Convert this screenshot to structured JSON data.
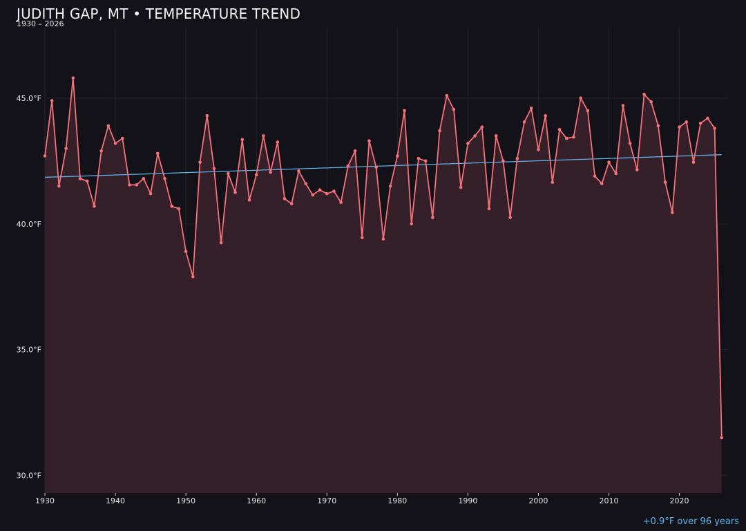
{
  "chart_data": {
    "type": "line",
    "title": "JUDITH GAP, MT • TEMPERATURE TREND",
    "subtitle": "1930 – 2026",
    "xlabel": "",
    "ylabel": "",
    "xlim": [
      1930,
      2027
    ],
    "ylim": [
      29.3,
      47.8
    ],
    "x_ticks": [
      1930,
      1940,
      1950,
      1960,
      1970,
      1980,
      1990,
      2000,
      2010,
      2020
    ],
    "y_ticks": [
      30,
      35,
      40,
      45
    ],
    "y_tick_labels": [
      "30.0°F",
      "35.0°F",
      "40.0°F",
      "45.0°F"
    ],
    "grid": true,
    "area_fill": true,
    "colors": {
      "background": "#131218",
      "line": "#f4727a",
      "fill": "#35202a",
      "trend": "#5fb4ee",
      "grid": "#2a2229"
    },
    "series": [
      {
        "x": [
          1930,
          1931,
          1932,
          1933,
          1934,
          1935,
          1936,
          1937,
          1938,
          1939,
          1940,
          1941,
          1942,
          1943,
          1944,
          1945,
          1946,
          1947,
          1948,
          1949,
          1950,
          1951,
          1952,
          1953,
          1954,
          1955,
          1956,
          1957,
          1958,
          1959,
          1960,
          1961,
          1962,
          1963,
          1964,
          1965,
          1966,
          1967,
          1968,
          1969,
          1970,
          1971,
          1972,
          1973,
          1974,
          1975,
          1976,
          1977,
          1978,
          1979,
          1980,
          1981,
          1982,
          1983,
          1984,
          1985,
          1986,
          1987,
          1988,
          1989,
          1990,
          1991,
          1992,
          1993,
          1994,
          1995,
          1996,
          1997,
          1998,
          1999,
          2000,
          2001,
          2002,
          2003,
          2004,
          2005,
          2006,
          2007,
          2008,
          2009,
          2010,
          2011,
          2012,
          2013,
          2014,
          2015,
          2016,
          2017,
          2018,
          2019,
          2020,
          2021,
          2022,
          2023,
          2024,
          2025,
          2026
        ],
        "values": [
          42.7,
          44.9,
          41.5,
          43.0,
          45.8,
          41.8,
          41.7,
          40.7,
          42.9,
          43.9,
          43.2,
          43.4,
          41.55,
          41.55,
          41.8,
          41.2,
          42.8,
          41.8,
          40.7,
          40.6,
          38.9,
          37.9,
          42.45,
          44.3,
          42.2,
          39.25,
          42.0,
          41.25,
          43.35,
          40.95,
          41.95,
          43.5,
          42.05,
          43.25,
          41.0,
          40.8,
          42.1,
          41.6,
          41.15,
          41.35,
          41.2,
          41.3,
          40.85,
          42.3,
          42.9,
          39.45,
          43.3,
          42.25,
          39.4,
          41.5,
          42.7,
          44.5,
          40.0,
          42.6,
          42.5,
          40.25,
          43.7,
          45.1,
          44.55,
          41.45,
          43.2,
          43.5,
          43.85,
          40.6,
          43.5,
          42.5,
          40.25,
          42.6,
          44.05,
          44.6,
          42.95,
          44.3,
          41.65,
          43.75,
          43.4,
          43.45,
          45.0,
          44.5,
          41.9,
          41.6,
          42.45,
          42.0,
          44.7,
          43.2,
          42.15,
          45.15,
          44.85,
          43.9,
          41.65,
          40.45,
          43.85,
          44.05,
          42.45,
          44.0,
          44.2,
          43.8,
          31.5
        ]
      }
    ],
    "trend": {
      "x": [
        1930,
        2026
      ],
      "values": [
        41.85,
        42.75
      ],
      "label": "+0.9°F over 96 years"
    }
  }
}
